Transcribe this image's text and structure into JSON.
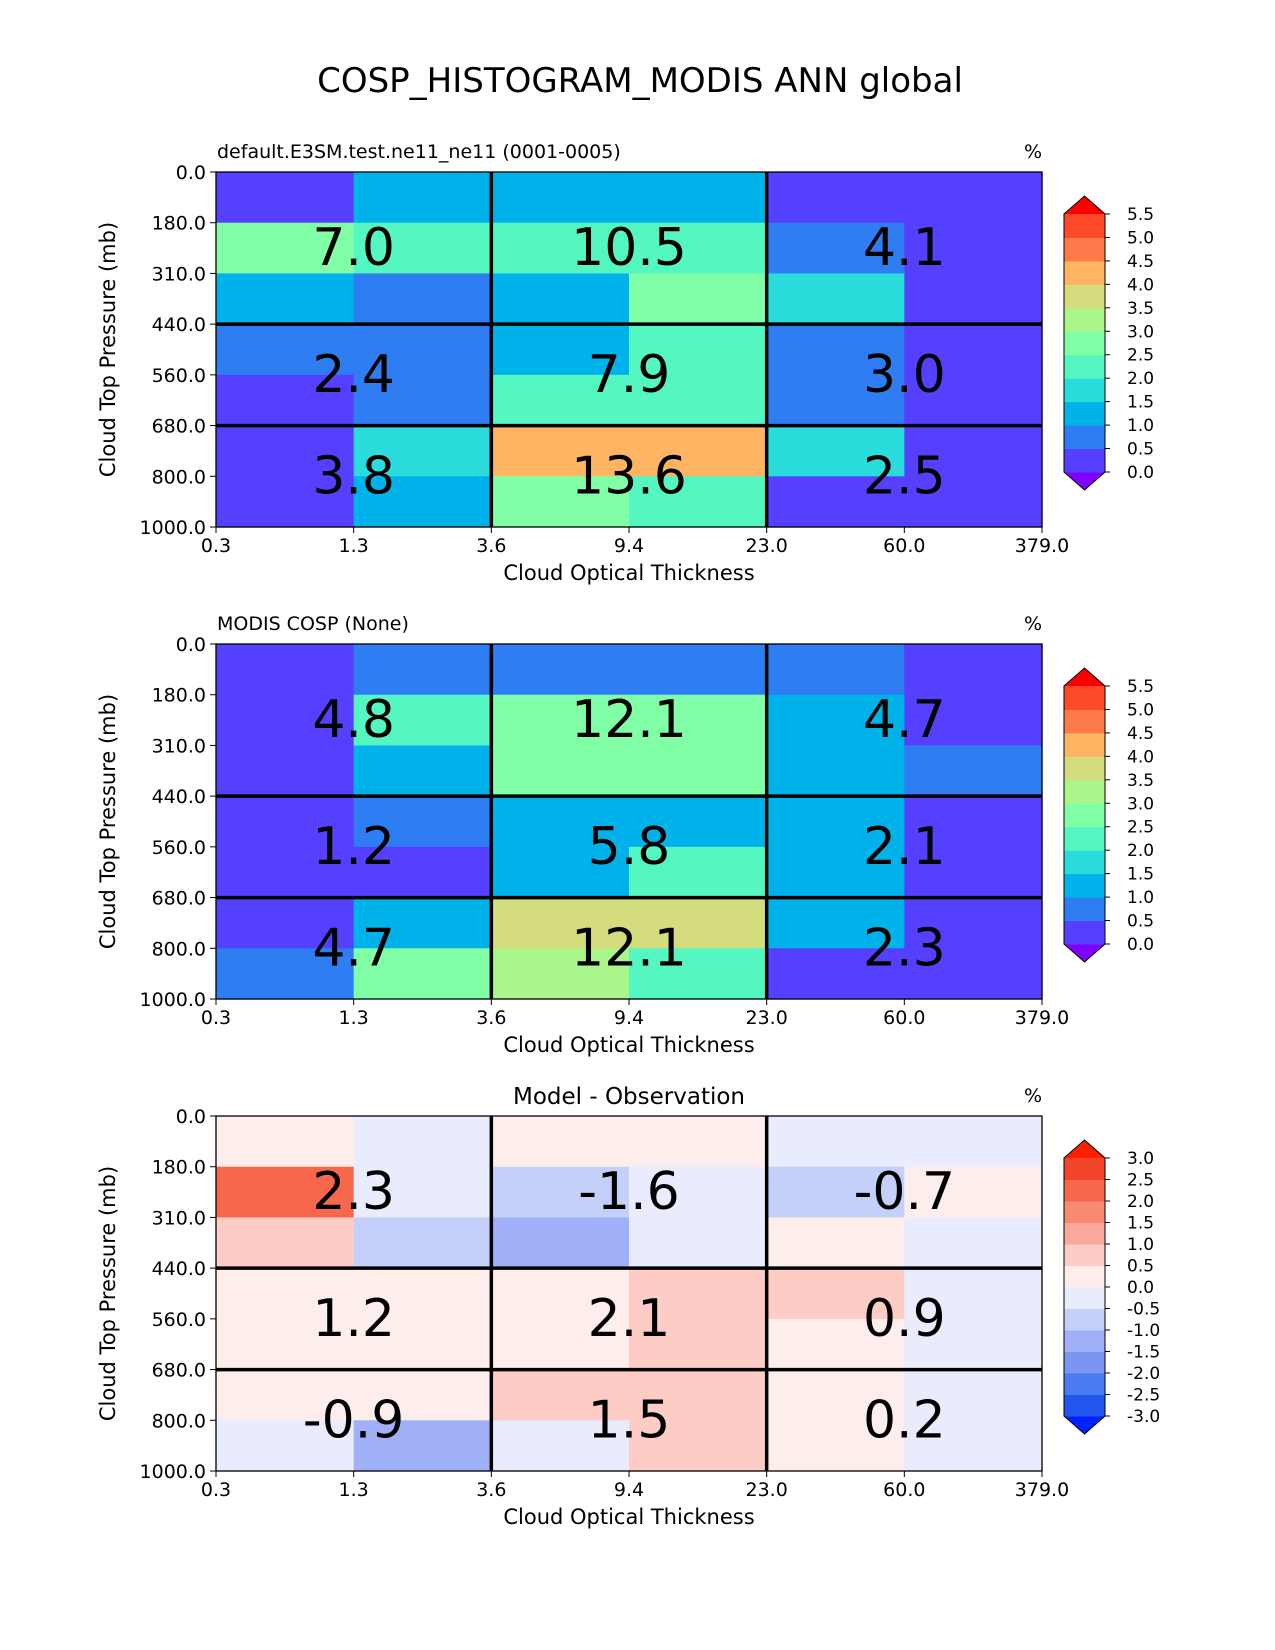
{
  "figure": {
    "title": "COSP_HISTOGRAM_MODIS ANN global"
  },
  "chart_data": [
    {
      "type": "heatmap",
      "title_left": "default.E3SM.test.ne11_ne11 (0001-0005)",
      "title_center": "",
      "units": "%",
      "xlabel": "Cloud Optical Thickness",
      "ylabel": "Cloud Top Pressure (mb)",
      "x_ticks": [
        "0.3",
        "1.3",
        "3.6",
        "9.4",
        "23.0",
        "60.0",
        "379.0"
      ],
      "y_ticks": [
        "0.0",
        "180.0",
        "310.0",
        "440.0",
        "560.0",
        "680.0",
        "800.0",
        "1000.0"
      ],
      "values": [
        [
          0.2,
          1.0,
          1.3,
          1.3,
          0.3,
          0.3
        ],
        [
          2.6,
          2.0,
          2.0,
          2.0,
          0.9,
          0.1
        ],
        [
          1.3,
          0.8,
          1.3,
          2.6,
          1.9,
          0.1
        ],
        [
          0.8,
          0.8,
          1.3,
          2.2,
          0.6,
          0.2
        ],
        [
          0.1,
          0.8,
          2.0,
          2.2,
          0.7,
          0.2
        ],
        [
          0.3,
          1.8,
          4.0,
          4.0,
          1.8,
          0.3
        ],
        [
          0.3,
          1.3,
          2.7,
          2.3,
          0.1,
          0.1
        ]
      ],
      "summary": [
        [
          "7.0",
          "10.5",
          "4.1"
        ],
        [
          "2.4",
          "7.9",
          "3.0"
        ],
        [
          "3.8",
          "13.6",
          "2.5"
        ]
      ],
      "colorbar": {
        "colors": [
          "#8000ff",
          "#5640ff",
          "#2e7df2",
          "#00b2ea",
          "#2adcdc",
          "#54f6c2",
          "#80ffa6",
          "#aaf68a",
          "#d4dc7e",
          "#ffb463",
          "#ff7a4a",
          "#ff4a2a",
          "#ff0000"
        ],
        "levels": [
          "0.0",
          "0.5",
          "1.0",
          "1.5",
          "2.0",
          "2.5",
          "3.0",
          "3.5",
          "4.0",
          "4.5",
          "5.0",
          "5.5"
        ]
      }
    },
    {
      "type": "heatmap",
      "title_left": "MODIS COSP (None)",
      "title_center": "",
      "units": "%",
      "xlabel": "Cloud Optical Thickness",
      "ylabel": "Cloud Top Pressure (mb)",
      "x_ticks": [
        "0.3",
        "1.3",
        "3.6",
        "9.4",
        "23.0",
        "60.0",
        "379.0"
      ],
      "y_ticks": [
        "0.0",
        "180.0",
        "310.0",
        "440.0",
        "560.0",
        "680.0",
        "800.0",
        "1000.0"
      ],
      "values": [
        [
          0.2,
          0.8,
          0.8,
          0.8,
          0.8,
          0.3
        ],
        [
          0.2,
          2.0,
          2.6,
          2.6,
          1.3,
          0.3
        ],
        [
          0.2,
          1.3,
          2.6,
          2.6,
          1.3,
          0.8
        ],
        [
          0.3,
          0.8,
          1.3,
          1.3,
          1.3,
          0.3
        ],
        [
          0.2,
          0.3,
          1.3,
          2.0,
          1.3,
          0.3
        ],
        [
          0.3,
          1.3,
          3.7,
          3.7,
          1.3,
          0.2
        ],
        [
          0.8,
          2.6,
          3.2,
          2.0,
          0.3,
          0.2
        ]
      ],
      "summary": [
        [
          "4.8",
          "12.1",
          "4.7"
        ],
        [
          "1.2",
          "5.8",
          "2.1"
        ],
        [
          "4.7",
          "12.1",
          "2.3"
        ]
      ],
      "colorbar": {
        "colors": [
          "#8000ff",
          "#5640ff",
          "#2e7df2",
          "#00b2ea",
          "#2adcdc",
          "#54f6c2",
          "#80ffa6",
          "#aaf68a",
          "#d4dc7e",
          "#ffb463",
          "#ff7a4a",
          "#ff4a2a",
          "#ff0000"
        ],
        "levels": [
          "0.0",
          "0.5",
          "1.0",
          "1.5",
          "2.0",
          "2.5",
          "3.0",
          "3.5",
          "4.0",
          "4.5",
          "5.0",
          "5.5"
        ]
      }
    },
    {
      "type": "heatmap",
      "title_left": "",
      "title_center": "Model - Observation",
      "units": "%",
      "xlabel": "Cloud Optical Thickness",
      "ylabel": "Cloud Top Pressure (mb)",
      "x_ticks": [
        "0.3",
        "1.3",
        "3.6",
        "9.4",
        "23.0",
        "60.0",
        "379.0"
      ],
      "y_ticks": [
        "0.0",
        "180.0",
        "310.0",
        "440.0",
        "560.0",
        "680.0",
        "800.0",
        "1000.0"
      ],
      "values": [
        [
          0.2,
          -0.2,
          0.2,
          0.2,
          -0.2,
          -0.2
        ],
        [
          2.0,
          -0.2,
          -0.7,
          -0.2,
          -0.7,
          0.2
        ],
        [
          0.7,
          -0.7,
          -1.2,
          -0.2,
          0.2,
          -0.2
        ],
        [
          0.2,
          0.2,
          0.2,
          0.7,
          0.7,
          -0.2
        ],
        [
          0.2,
          0.2,
          0.2,
          0.7,
          0.2,
          -0.2
        ],
        [
          0.2,
          0.2,
          0.7,
          0.7,
          0.2,
          -0.2
        ],
        [
          -0.2,
          -1.2,
          -0.2,
          0.7,
          0.2,
          -0.2
        ]
      ],
      "summary": [
        [
          "2.3",
          "-1.6",
          "-0.7"
        ],
        [
          "1.2",
          "2.1",
          "0.9"
        ],
        [
          "-0.9",
          "1.5",
          "0.2"
        ]
      ],
      "colorbar": {
        "colors": [
          "#0022ff",
          "#2255ee",
          "#4a7bf0",
          "#7a96f2",
          "#9fb0f8",
          "#c4d0fa",
          "#e8ecfd",
          "#fdeeec",
          "#fdccc5",
          "#fca99b",
          "#f98a72",
          "#f7674c",
          "#f2452c",
          "#ff1f00"
        ],
        "levels": [
          "-3.0",
          "-2.5",
          "-2.0",
          "-1.5",
          "-1.0",
          "-0.5",
          "0.0",
          "0.5",
          "1.0",
          "1.5",
          "2.0",
          "2.5",
          "3.0"
        ]
      }
    }
  ]
}
